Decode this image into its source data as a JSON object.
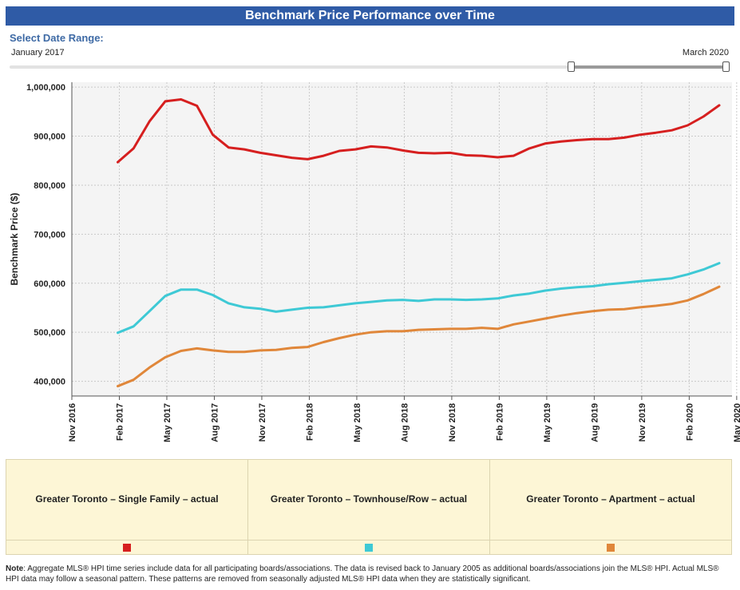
{
  "header": {
    "title": "Benchmark Price Performance over Time"
  },
  "date_range": {
    "label": "Select Date Range:",
    "start": "January 2017",
    "end": "March 2020"
  },
  "chart_data": {
    "type": "line",
    "ylabel": "Benchmark Price ($)",
    "ylim": [
      370000,
      1010000
    ],
    "yticks": [
      400000,
      500000,
      600000,
      700000,
      800000,
      900000,
      1000000
    ],
    "ytick_labels": [
      "400,000",
      "500,000",
      "600,000",
      "700,000",
      "800,000",
      "900,000",
      "1,000,000"
    ],
    "xticks": [
      "Nov 2016",
      "Feb 2017",
      "May 2017",
      "Aug 2017",
      "Nov 2017",
      "Feb 2018",
      "May 2018",
      "Aug 2018",
      "Nov 2018",
      "Feb 2019",
      "May 2019",
      "Aug 2019",
      "Nov 2019",
      "Feb 2020",
      "May 2020"
    ],
    "x": [
      "2017-01",
      "2017-02",
      "2017-03",
      "2017-04",
      "2017-05",
      "2017-06",
      "2017-07",
      "2017-08",
      "2017-09",
      "2017-10",
      "2017-11",
      "2017-12",
      "2018-01",
      "2018-02",
      "2018-03",
      "2018-04",
      "2018-05",
      "2018-06",
      "2018-07",
      "2018-08",
      "2018-09",
      "2018-10",
      "2018-11",
      "2018-12",
      "2019-01",
      "2019-02",
      "2019-03",
      "2019-04",
      "2019-05",
      "2019-06",
      "2019-07",
      "2019-08",
      "2019-09",
      "2019-10",
      "2019-11",
      "2019-12",
      "2020-01",
      "2020-02",
      "2020-03"
    ],
    "grid": true,
    "series": [
      {
        "name": "Greater Toronto – Single Family – actual",
        "color": "#d61f1f",
        "values": [
          847000,
          875000,
          930000,
          971000,
          975000,
          962000,
          903000,
          877000,
          873000,
          866000,
          861000,
          856000,
          853000,
          860000,
          870000,
          873000,
          879000,
          877000,
          871000,
          866000,
          865000,
          866000,
          861000,
          860000,
          857000,
          860000,
          875000,
          885000,
          889000,
          892000,
          894000,
          894000,
          897000,
          903000,
          907000,
          912000,
          922000,
          940000,
          963000
        ]
      },
      {
        "name": "Greater Toronto – Townhouse/Row – actual",
        "color": "#3ec9d5",
        "values": [
          499000,
          512000,
          543000,
          574000,
          587000,
          587000,
          576000,
          559000,
          551000,
          548000,
          542000,
          546000,
          550000,
          551000,
          555000,
          559000,
          562000,
          565000,
          566000,
          564000,
          567000,
          567000,
          566000,
          567000,
          569000,
          575000,
          579000,
          585000,
          589000,
          592000,
          594000,
          598000,
          601000,
          604000,
          607000,
          610000,
          618000,
          628000,
          641000
        ]
      },
      {
        "name": "Greater Toronto – Apartment – actual",
        "color": "#e0873a",
        "values": [
          390000,
          403000,
          428000,
          449000,
          462000,
          467000,
          463000,
          460000,
          460000,
          463000,
          464000,
          468000,
          470000,
          480000,
          488000,
          495000,
          500000,
          502000,
          502000,
          505000,
          506000,
          507000,
          507000,
          509000,
          507000,
          516000,
          522000,
          528000,
          534000,
          539000,
          543000,
          546000,
          547000,
          551000,
          554000,
          558000,
          565000,
          578000,
          593000
        ]
      }
    ]
  },
  "legend": {
    "items": [
      {
        "label": "Greater Toronto – Single Family – actual",
        "color": "#d61f1f"
      },
      {
        "label": "Greater Toronto – Townhouse/Row – actual",
        "color": "#3ec9d5"
      },
      {
        "label": "Greater Toronto – Apartment – actual",
        "color": "#e0873a"
      }
    ]
  },
  "note": {
    "label": "Note",
    "text": ": Aggregate MLS® HPI time series include data for all participating boards/associations. The data is revised back to January 2005 as additional boards/associations join the MLS® HPI. Actual MLS® HPI data may follow a seasonal pattern. These patterns are removed from seasonally adjusted MLS® HPI data when they are statistically significant."
  }
}
